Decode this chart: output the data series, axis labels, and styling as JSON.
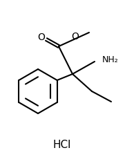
{
  "title": "",
  "background_color": "#ffffff",
  "line_color": "#000000",
  "line_width": 1.5,
  "font_size_label": 9,
  "font_size_hcl": 10,
  "hcl_text": "HCl",
  "nh2_text": "NH₂",
  "o_text": "O",
  "o_methyl_text": "O",
  "figsize": [
    1.81,
    2.27
  ],
  "dpi": 100
}
